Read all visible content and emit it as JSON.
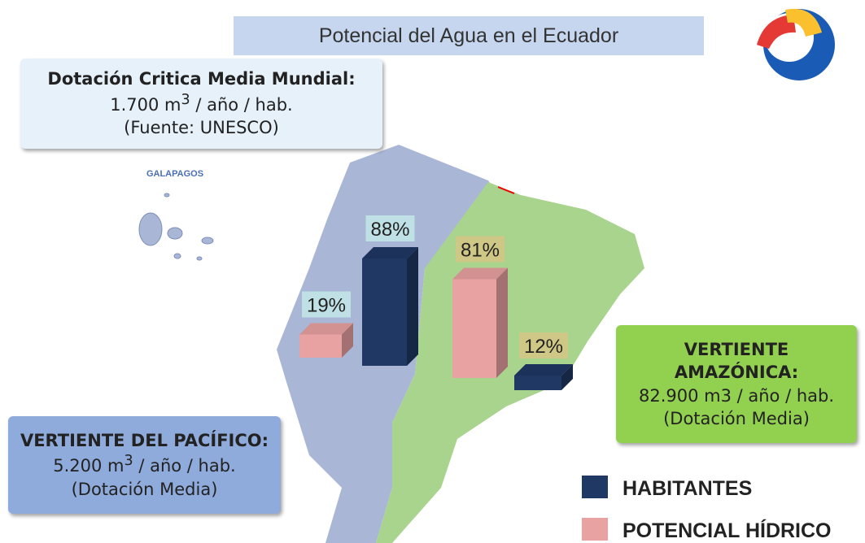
{
  "title": "Potencial del Agua en el Ecuador",
  "mundial": {
    "heading": "Dotación Critica Media Mundial:",
    "value": [
      "1.700 m",
      "3",
      " / año / hab."
    ],
    "source": "(Fuente: UNESCO)"
  },
  "galapagos": "GALAPAGOS",
  "pacifico": {
    "heading": "VERTIENTE DEL PACÍFICO:",
    "value": [
      "5.200 m",
      "3",
      " / año / hab."
    ],
    "note": "(Dotación Media)"
  },
  "amazonica": {
    "heading": [
      "VERTIENTE",
      "AMAZÓNICA:"
    ],
    "value": "82.900 m3 / año / hab.",
    "note": "(Dotación Media)"
  },
  "chart_data": {
    "type": "bar",
    "categories": [
      null,
      null
    ],
    "series": [
      {
        "name": "HABITANTES",
        "color": "#1f3864",
        "values": [
          88,
          12
        ],
        "value_labels": [
          "88%",
          "12%"
        ]
      },
      {
        "name": "POTENCIAL HÍDRICO",
        "color": "#e9a2a2",
        "values": [
          19,
          81
        ],
        "value_labels": [
          "19%",
          "81%"
        ]
      }
    ]
  }
}
